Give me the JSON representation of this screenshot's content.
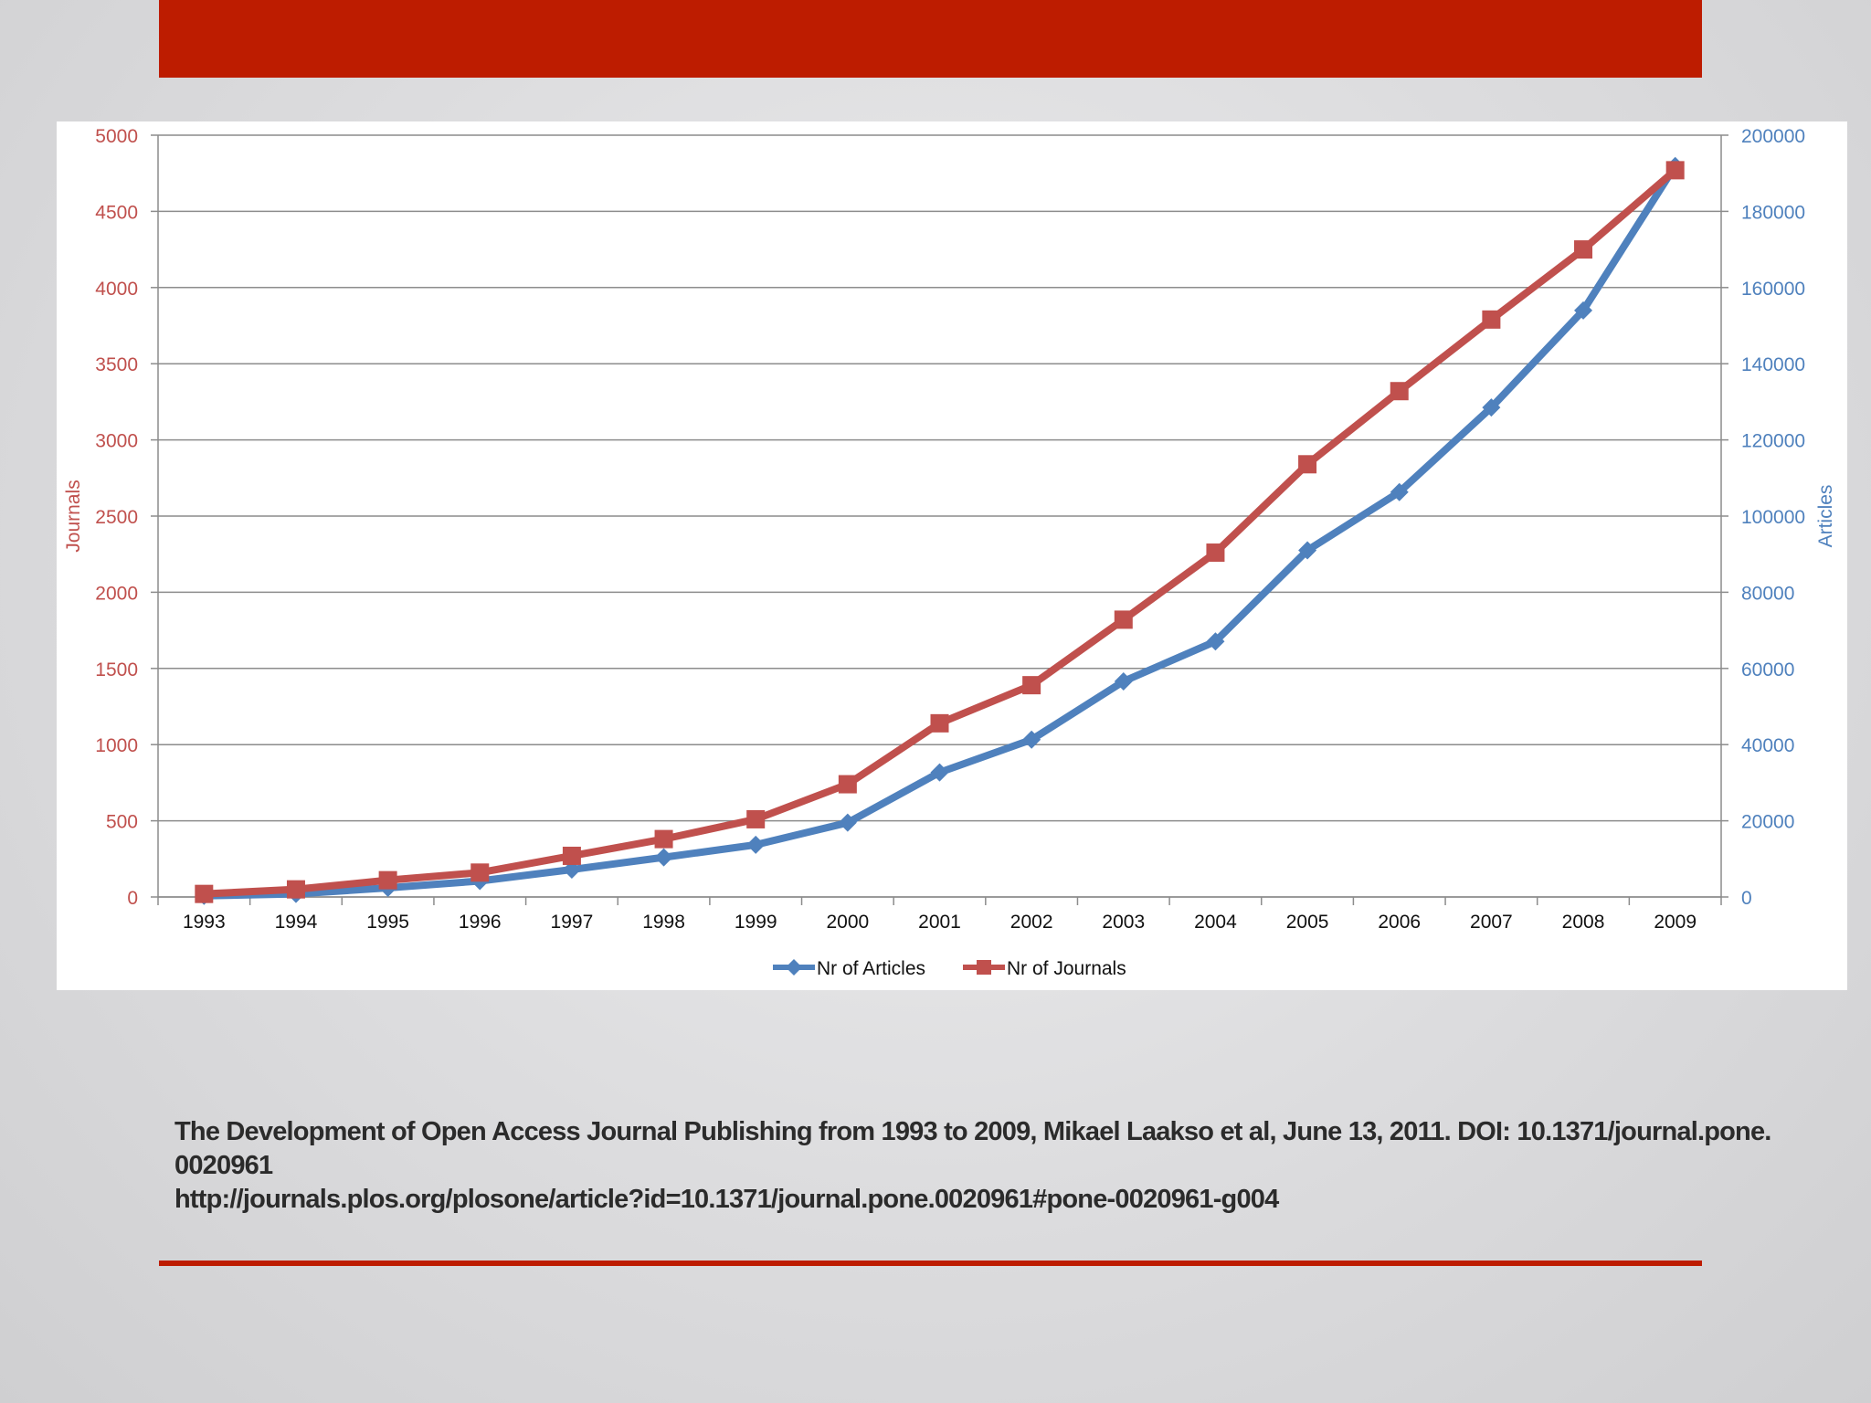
{
  "theme": {
    "accent": "#bd1c00",
    "journals_color": "#c0504d",
    "articles_color": "#4f81bd",
    "grid_color": "#8c8c8c"
  },
  "caption": {
    "line1": "The Development of Open Access Journal Publishing from 1993 to 2009, Mikael Laakso et al, June 13, 2011.  DOI: 10.1371/journal.pone.",
    "line2": "0020961",
    "line3": "http://journals.plos.org/plosone/article?id=10.1371/journal.pone.0020961#pone-0020961-g004"
  },
  "chart_data": {
    "type": "line",
    "title": "",
    "x": [
      "1993",
      "1994",
      "1995",
      "1996",
      "1997",
      "1998",
      "1999",
      "2000",
      "2001",
      "2002",
      "2003",
      "2004",
      "2005",
      "2006",
      "2007",
      "2008",
      "2009"
    ],
    "ylabel_left": "Journals",
    "ylabel_right": "Articles",
    "ylim_left": [
      0,
      5000
    ],
    "ylim_right": [
      0,
      200000
    ],
    "yticks_left": [
      "0",
      "500",
      "1000",
      "1500",
      "2000",
      "2500",
      "3000",
      "3500",
      "4000",
      "4500",
      "5000"
    ],
    "yticks_right": [
      "0",
      "20000",
      "40000",
      "60000",
      "80000",
      "100000",
      "120000",
      "140000",
      "160000",
      "180000",
      "200000"
    ],
    "grid": true,
    "legend_position": "bottom",
    "series": [
      {
        "name": "Nr of Articles",
        "axis": "right",
        "marker": "diamond",
        "values": [
          300,
          800,
          2400,
          4200,
          7200,
          10400,
          13700,
          19500,
          32700,
          41300,
          56600,
          67100,
          91000,
          106300,
          128500,
          154000,
          191900
        ]
      },
      {
        "name": "Nr of Journals",
        "axis": "left",
        "marker": "square",
        "values": [
          20,
          50,
          110,
          160,
          270,
          380,
          510,
          740,
          1140,
          1390,
          1820,
          2260,
          2840,
          3320,
          3790,
          4250,
          4770
        ]
      }
    ]
  }
}
